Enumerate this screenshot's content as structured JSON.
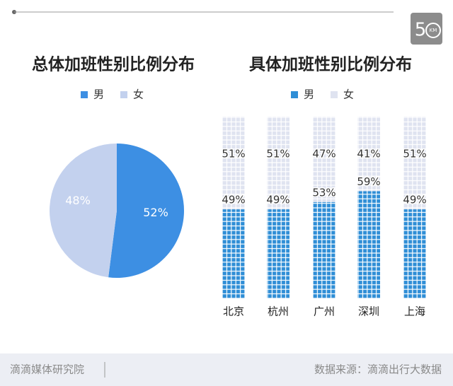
{
  "header": {
    "logo_digit": "5",
    "logo_unit": "KM"
  },
  "chart_data": [
    {
      "type": "pie",
      "title": "总体加班性别比例分布",
      "categories": [
        "男",
        "女"
      ],
      "values": [
        52,
        48
      ],
      "value_labels": [
        "52%",
        "48%"
      ],
      "colors": [
        "#3d8fe3",
        "#c3d1ee"
      ],
      "legend": "top"
    },
    {
      "type": "stacked_bar",
      "title": "具体加班性别比例分布",
      "categories": [
        "北京",
        "杭州",
        "广州",
        "深圳",
        "上海"
      ],
      "series": [
        {
          "name": "男",
          "color": "#2f8ed6",
          "values": [
            49,
            49,
            53,
            59,
            49
          ],
          "value_labels": [
            "49%",
            "49%",
            "53%",
            "59%",
            "49%"
          ]
        },
        {
          "name": "女",
          "color": "#dfe3f0",
          "values": [
            51,
            51,
            47,
            41,
            51
          ],
          "value_labels": [
            "51%",
            "51%",
            "47%",
            "41%",
            "51%"
          ]
        }
      ],
      "ylim": [
        0,
        100
      ],
      "legend": "top"
    }
  ],
  "footer": {
    "org": "滴滴媒体研究院",
    "source": "数据来源：滴滴出行大数据"
  }
}
